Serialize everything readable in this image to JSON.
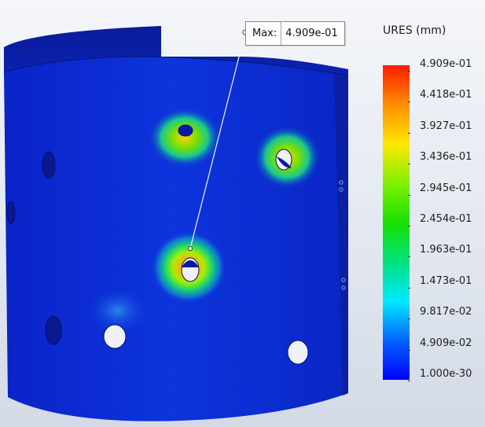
{
  "callout": {
    "label": "Max:",
    "value": "4.909e-01"
  },
  "legend": {
    "title": "URES (mm)",
    "ticks": [
      "4.909e-01",
      "4.418e-01",
      "3.927e-01",
      "3.436e-01",
      "2.945e-01",
      "2.454e-01",
      "1.963e-01",
      "1.473e-01",
      "9.817e-02",
      "4.909e-02",
      "1.000e-30"
    ],
    "colors": [
      "#ff1a00",
      "#ff8a00",
      "#ffe600",
      "#7cf000",
      "#18e000",
      "#00e27a",
      "#00e8ff",
      "#0060ff",
      "#0000ff"
    ]
  },
  "colors": {
    "model_base": "#0b2ed8",
    "model_dark": "#0a1f9a",
    "hole_white": "#eef1f8"
  }
}
